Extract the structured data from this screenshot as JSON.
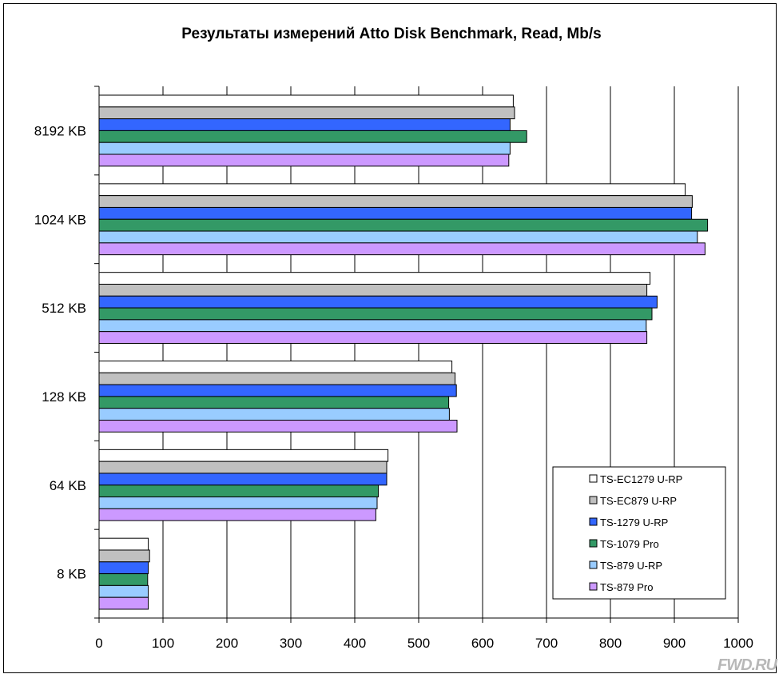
{
  "chart_data": {
    "type": "bar",
    "orientation": "horizontal",
    "title": "Результаты измерений Atto Disk Benchmark, Read, Mb/s",
    "categories": [
      "8192 KB",
      "1024 KB",
      "512 KB",
      "128 KB",
      "64 KB",
      "8 KB"
    ],
    "xlim": [
      0,
      1000
    ],
    "xticks": [
      0,
      100,
      200,
      300,
      400,
      500,
      600,
      700,
      800,
      900,
      1000
    ],
    "grid": "vertical",
    "legend_position": "bottom-right",
    "series": [
      {
        "name": "TS-EC1279 U-RP",
        "color": "#ffffff",
        "values": [
          648,
          917,
          862,
          552,
          452,
          77
        ]
      },
      {
        "name": "TS-EC879 U-RP",
        "color": "#c0c0c0",
        "values": [
          650,
          928,
          857,
          557,
          450,
          79
        ]
      },
      {
        "name": "TS-1279 U-RP",
        "color": "#3366ff",
        "values": [
          643,
          927,
          873,
          559,
          450,
          77
        ]
      },
      {
        "name": "TS-1079 Pro",
        "color": "#339966",
        "values": [
          669,
          952,
          865,
          547,
          437,
          76
        ]
      },
      {
        "name": "TS-879 U-RP",
        "color": "#99ccff",
        "values": [
          643,
          936,
          856,
          548,
          435,
          77
        ]
      },
      {
        "name": "TS-879 Pro",
        "color": "#cc99ff",
        "values": [
          641,
          948,
          857,
          560,
          433,
          77
        ]
      }
    ]
  },
  "watermark": "FWD.RU"
}
